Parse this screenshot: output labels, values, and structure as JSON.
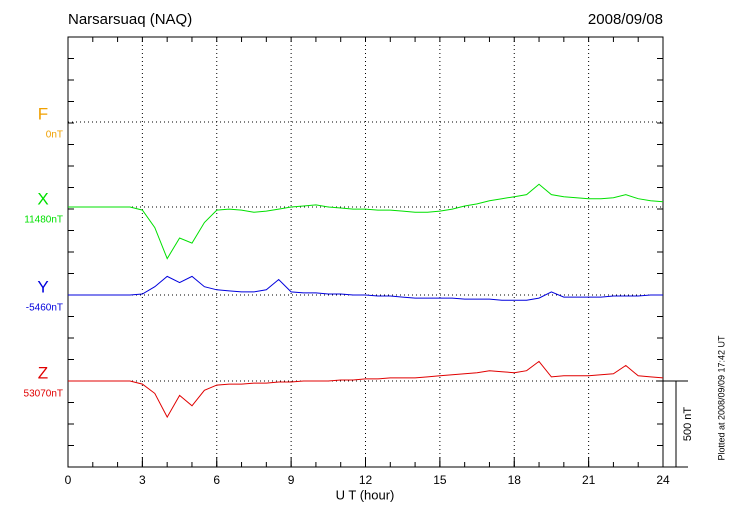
{
  "chart_data": {
    "type": "line",
    "title": "Narsarsuaq (NAQ)",
    "date": "2008/09/08",
    "xlabel": "U T (hour)",
    "note": "Plotted at 2008/09/09 17:42 UT",
    "scale": {
      "value": 500,
      "label": "500 nT"
    },
    "xlim": [
      0,
      24
    ],
    "xticks": [
      0,
      3,
      6,
      9,
      12,
      15,
      18,
      21,
      24
    ],
    "grid": true,
    "x": [
      0,
      0.5,
      1,
      1.5,
      2,
      2.5,
      3,
      3.5,
      4,
      4.5,
      5,
      5.5,
      6,
      6.5,
      7,
      7.5,
      8,
      8.5,
      9,
      9.5,
      10,
      10.5,
      11,
      11.5,
      12,
      12.5,
      13,
      13.5,
      14,
      14.5,
      15,
      15.5,
      16,
      16.5,
      17,
      17.5,
      18,
      18.5,
      19,
      19.5,
      20,
      20.5,
      21,
      21.5,
      22,
      22.5,
      23,
      23.5,
      24
    ],
    "series": [
      {
        "name": "F",
        "color": "#f0a000",
        "baseline": {
          "value": 0,
          "label": "0nT"
        },
        "values": [
          null,
          null,
          null,
          null,
          null,
          null,
          null,
          null,
          null,
          null,
          null,
          null,
          null,
          null,
          null,
          null,
          null,
          null,
          null,
          null,
          null,
          null,
          null,
          null,
          null,
          null,
          null,
          null,
          null,
          null,
          null,
          null,
          null,
          null,
          null,
          null,
          null,
          null,
          null,
          null,
          null,
          null,
          null,
          null,
          null,
          null,
          null,
          null,
          null
        ]
      },
      {
        "name": "X",
        "color": "#00e000",
        "baseline": {
          "value": 11480,
          "label": "11480nT"
        },
        "values": [
          11480,
          11480,
          11480,
          11480,
          11480,
          11480,
          11462,
          11360,
          11180,
          11300,
          11270,
          11390,
          11462,
          11468,
          11462,
          11450,
          11456,
          11468,
          11480,
          11486,
          11492,
          11480,
          11474,
          11468,
          11468,
          11462,
          11462,
          11456,
          11450,
          11450,
          11456,
          11468,
          11486,
          11498,
          11516,
          11528,
          11540,
          11552,
          11612,
          11552,
          11540,
          11534,
          11528,
          11528,
          11534,
          11552,
          11528,
          11516,
          11510
        ]
      },
      {
        "name": "Y",
        "color": "#0000dd",
        "baseline": {
          "value": -5460,
          "label": "-5460nT"
        },
        "values": [
          -5460,
          -5460,
          -5460,
          -5460,
          -5460,
          -5460,
          -5454,
          -5412,
          -5352,
          -5388,
          -5352,
          -5412,
          -5430,
          -5436,
          -5442,
          -5442,
          -5430,
          -5370,
          -5442,
          -5448,
          -5448,
          -5454,
          -5454,
          -5460,
          -5460,
          -5466,
          -5466,
          -5472,
          -5478,
          -5478,
          -5478,
          -5478,
          -5484,
          -5484,
          -5484,
          -5490,
          -5490,
          -5490,
          -5478,
          -5442,
          -5472,
          -5472,
          -5472,
          -5472,
          -5466,
          -5466,
          -5466,
          -5460,
          -5460
        ]
      },
      {
        "name": "Z",
        "color": "#e00000",
        "baseline": {
          "value": 53070,
          "label": "53070nT"
        },
        "values": [
          53070,
          53070,
          53070,
          53070,
          53070,
          53070,
          53052,
          52998,
          52860,
          52986,
          52926,
          53016,
          53046,
          53052,
          53052,
          53058,
          53058,
          53064,
          53064,
          53070,
          53070,
          53070,
          53076,
          53076,
          53082,
          53082,
          53088,
          53088,
          53088,
          53094,
          53100,
          53106,
          53112,
          53118,
          53130,
          53124,
          53118,
          53130,
          53184,
          53094,
          53100,
          53100,
          53100,
          53106,
          53112,
          53160,
          53100,
          53094,
          53088
        ]
      }
    ]
  }
}
